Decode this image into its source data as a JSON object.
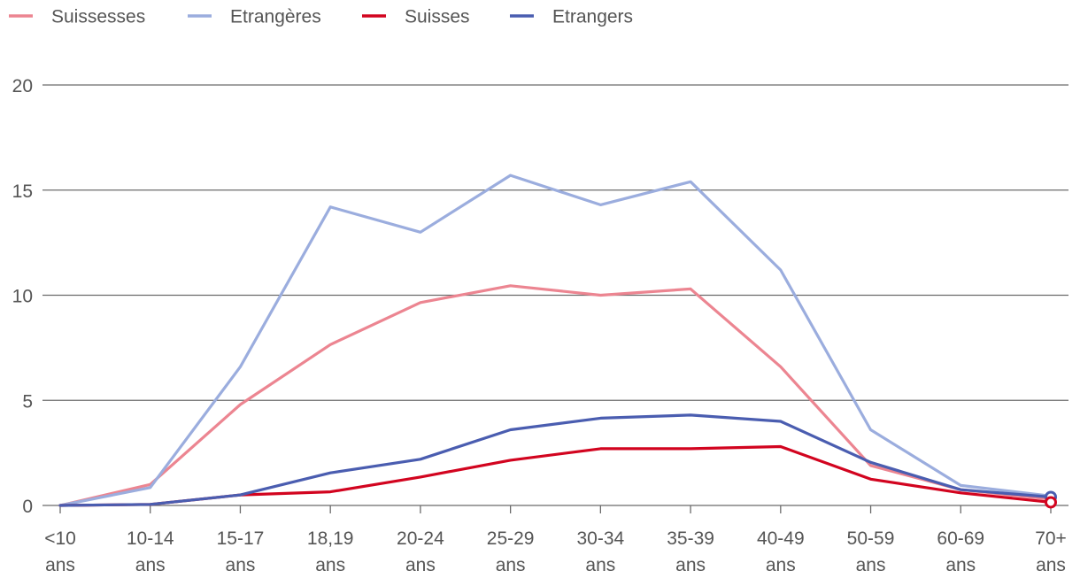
{
  "chart_data": {
    "type": "line",
    "title": "",
    "xlabel": "",
    "ylabel": "",
    "ylim": [
      0,
      20
    ],
    "yticks": [
      0,
      5,
      10,
      15,
      20
    ],
    "grid": true,
    "legend_position": "top-left",
    "categories": [
      [
        "<10",
        "ans"
      ],
      [
        "10-14",
        "ans"
      ],
      [
        "15-17",
        "ans"
      ],
      [
        "18,19",
        "ans"
      ],
      [
        "20-24",
        "ans"
      ],
      [
        "25-29",
        "ans"
      ],
      [
        "30-34",
        "ans"
      ],
      [
        "35-39",
        "ans"
      ],
      [
        "40-49",
        "ans"
      ],
      [
        "50-59",
        "ans"
      ],
      [
        "60-69",
        "ans"
      ],
      [
        "70+",
        "ans"
      ]
    ],
    "series": [
      {
        "name": "Suissesses",
        "color": "#ec8591",
        "values": [
          0.0,
          1.0,
          4.8,
          7.65,
          9.65,
          10.45,
          10.0,
          10.3,
          6.6,
          1.9,
          0.75,
          0.3
        ]
      },
      {
        "name": "Etrangères",
        "color": "#9badde",
        "values": [
          0.0,
          0.85,
          6.6,
          14.2,
          13.0,
          15.7,
          14.3,
          15.4,
          11.2,
          3.6,
          0.95,
          0.45
        ]
      },
      {
        "name": "Suisses",
        "color": "#d2041f",
        "values": [
          0.0,
          0.05,
          0.5,
          0.65,
          1.35,
          2.15,
          2.7,
          2.7,
          2.8,
          1.25,
          0.6,
          0.15
        ]
      },
      {
        "name": "Etrangers",
        "color": "#4a5db0",
        "values": [
          0.0,
          0.05,
          0.5,
          1.55,
          2.2,
          3.6,
          4.15,
          4.3,
          4.0,
          2.05,
          0.75,
          0.4
        ]
      }
    ],
    "highlighted_point": {
      "category_index": 11,
      "series": [
        "Etrangers",
        "Suisses"
      ]
    }
  }
}
